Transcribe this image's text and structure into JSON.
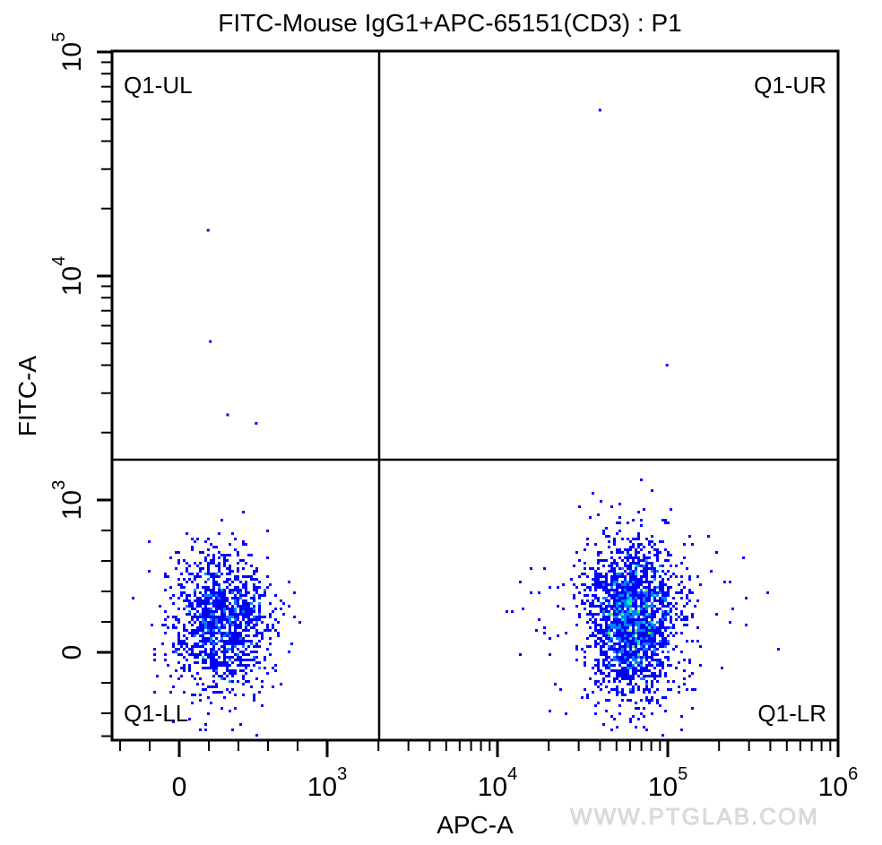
{
  "chart_data": {
    "type": "scatter",
    "subtype": "flow-cytometry density dot plot with quadrant gate",
    "title": "FITC-Mouse IgG1+APC-65151(CD3) : P1",
    "xlabel": "APC-A",
    "ylabel": "FITC-A",
    "x_scale": "biexponential",
    "y_scale": "biexponential",
    "x_ticks": [
      {
        "value": 0,
        "label": "0"
      },
      {
        "value": 1000,
        "label": "10",
        "exp": "3"
      },
      {
        "value": 10000,
        "label": "10",
        "exp": "4"
      },
      {
        "value": 100000,
        "label": "10",
        "exp": "5"
      },
      {
        "value": 1000000,
        "label": "10",
        "exp": "6"
      }
    ],
    "y_ticks": [
      {
        "value": 0,
        "label": "0"
      },
      {
        "value": 1000,
        "label": "10",
        "exp": "3"
      },
      {
        "value": 10000,
        "label": "10",
        "exp": "4"
      },
      {
        "value": 100000,
        "label": "10",
        "exp": "5"
      }
    ],
    "xlim": [
      -450,
      1000000
    ],
    "ylim": [
      -575,
      100000
    ],
    "gate": {
      "x_threshold": 2000,
      "y_threshold": 1700
    },
    "quadrants": [
      "Q1-UL",
      "Q1-UR",
      "Q1-LL",
      "Q1-LR"
    ],
    "populations": [
      {
        "quadrant": "Q1-LL",
        "x_center": 280,
        "x_sd": 170,
        "y_center": 200,
        "y_sd": 230,
        "events": 1300
      },
      {
        "quadrant": "Q1-LR",
        "x_center": 62000,
        "x_sd_decades": 0.13,
        "y_center": 220,
        "y_sd": 260,
        "events": 2200
      }
    ],
    "outliers": [
      {
        "x": 195,
        "y": 16000
      },
      {
        "x": 210,
        "y": 5100
      },
      {
        "x": 327,
        "y": 2400
      },
      {
        "x": 520,
        "y": 2200
      },
      {
        "x": 40000,
        "y": 55000
      },
      {
        "x": 99000,
        "y": 4000
      }
    ],
    "density_colors": [
      "#0000ff",
      "#0080ff",
      "#00e0e0",
      "#40ff40",
      "#ffff00",
      "#ff0000"
    ],
    "grid": false,
    "legend": "none"
  },
  "watermark": "WWW.PTGLAB.COM"
}
